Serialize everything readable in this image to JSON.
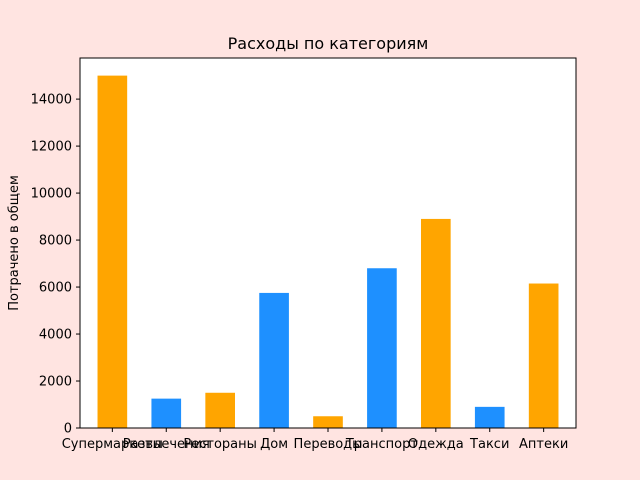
{
  "chart_data": {
    "type": "bar",
    "title": "Расходы по категориям",
    "xlabel": "",
    "ylabel": "Потрачено в общем",
    "categories": [
      "Супермаркеты",
      "Развлечения",
      "Рестораны",
      "Дом",
      "Переводы",
      "Транспорт",
      "Одежда",
      "Такси",
      "Аптеки"
    ],
    "values": [
      15000,
      1250,
      1500,
      5750,
      500,
      6800,
      8900,
      900,
      6150
    ],
    "bar_colors": [
      "#ffa500",
      "#1e90ff",
      "#ffa500",
      "#1e90ff",
      "#ffa500",
      "#1e90ff",
      "#ffa500",
      "#1e90ff",
      "#ffa500"
    ],
    "ylim": [
      0,
      15750
    ],
    "yticks": [
      0,
      2000,
      4000,
      6000,
      8000,
      10000,
      12000,
      14000
    ],
    "grid": false,
    "background_color": "#ffe4e1",
    "plot_background_color": "#ffffff"
  }
}
